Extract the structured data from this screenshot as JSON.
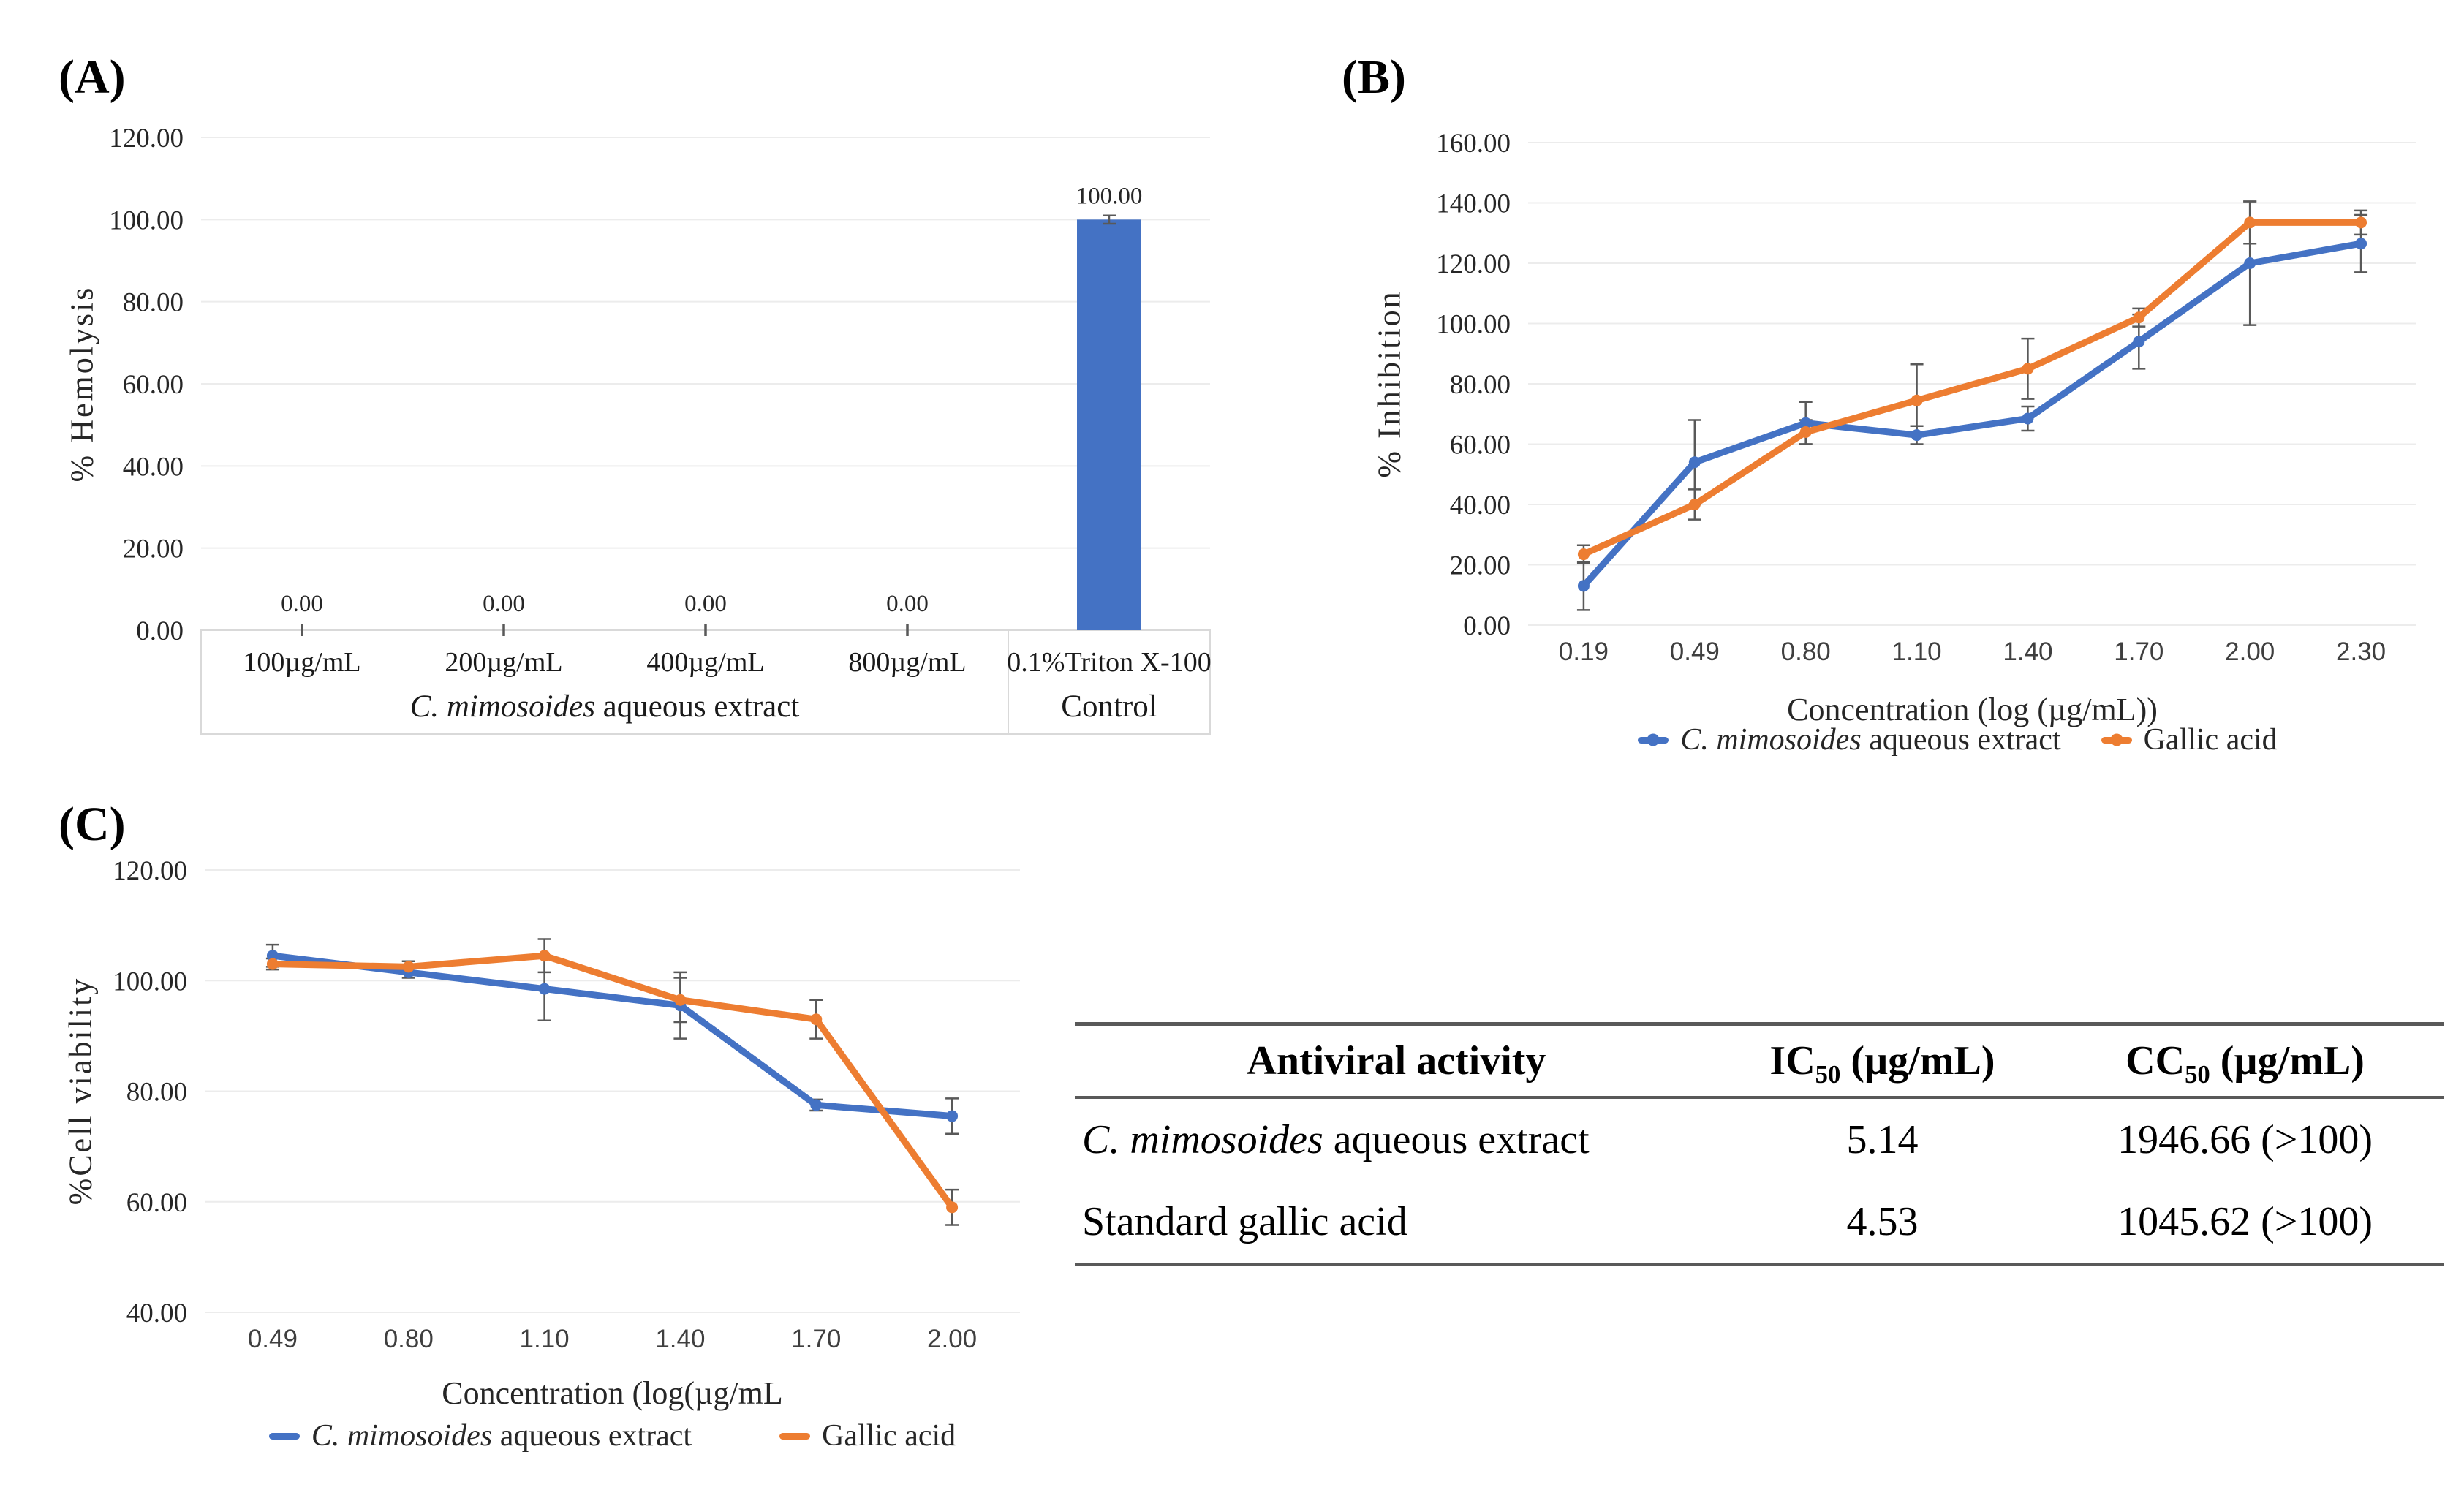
{
  "colors": {
    "series_blue": "#4472C4",
    "series_orange": "#ED7D31",
    "gridline": "#ececec",
    "error_bar": "#595959",
    "band_border": "#d9d9d9"
  },
  "chart_data": [
    {
      "id": "A",
      "type": "bar",
      "panel_label": "(A)",
      "ylabel": "% Hemolysis",
      "xlabel": "",
      "ylim": [
        0,
        120
      ],
      "ytick_labels": [
        "0.00",
        "20.00",
        "40.00",
        "60.00",
        "80.00",
        "100.00",
        "120.00"
      ],
      "categories": [
        "100µg/mL",
        "200µg/mL",
        "400µg/mL",
        "800µg/mL",
        "0.1%Triton X-100"
      ],
      "group_labels": [
        {
          "italic": "C. mimosoides",
          "text": " aqueous extract",
          "span": 4
        },
        {
          "italic": "",
          "text": "Control",
          "span": 1
        }
      ],
      "values": [
        0,
        0,
        0,
        0,
        100
      ],
      "data_labels": [
        "0.00",
        "0.00",
        "0.00",
        "0.00",
        "100.00"
      ],
      "errors": [
        0,
        0,
        0,
        0,
        1
      ],
      "bar_color": "#4472C4",
      "grid": true,
      "legend_position": "none"
    },
    {
      "id": "B",
      "type": "line",
      "panel_label": "(B)",
      "ylabel": "% Inhibition",
      "xlabel": "Concentration (log (µg/mL))",
      "ylim": [
        0,
        160
      ],
      "ytick_labels": [
        "0.00",
        "20.00",
        "40.00",
        "60.00",
        "80.00",
        "100.00",
        "120.00",
        "140.00",
        "160.00"
      ],
      "x_categories": [
        "0.19",
        "0.49",
        "0.80",
        "1.10",
        "1.40",
        "1.70",
        "2.00",
        "2.30"
      ],
      "series": [
        {
          "legend_italic": "C. mimosoides",
          "legend_text": " aqueous extract",
          "color": "#4472C4",
          "values": [
            13,
            54,
            67,
            63,
            68.5,
            94,
            120,
            126.5
          ],
          "errors": [
            8,
            14,
            7,
            3,
            4,
            9,
            20.5,
            9.5
          ]
        },
        {
          "legend_italic": "",
          "legend_text": "Gallic acid",
          "color": "#ED7D31",
          "values": [
            23.5,
            40,
            64,
            74.5,
            85,
            102,
            133.5,
            133.5
          ],
          "errors": [
            3,
            5,
            4,
            12,
            10,
            3,
            7,
            4
          ]
        }
      ],
      "grid": true,
      "legend_position": "bottom"
    },
    {
      "id": "C",
      "type": "line",
      "panel_label": "(C)",
      "ylabel": "%Cell viability",
      "xlabel": "Concentration (log(µg/mL",
      "ylim": [
        40,
        120
      ],
      "ytick_labels": [
        "40.00",
        "60.00",
        "80.00",
        "100.00",
        "120.00"
      ],
      "x_categories": [
        "0.49",
        "0.80",
        "1.10",
        "1.40",
        "1.70",
        "2.00"
      ],
      "series": [
        {
          "legend_italic": "C. mimosoides",
          "legend_text": " aqueous extract",
          "color": "#4472C4",
          "values": [
            104.5,
            101.5,
            98.5,
            95.5,
            77.5,
            75.5
          ],
          "errors": [
            2,
            1,
            5.7,
            6,
            1,
            3.2
          ]
        },
        {
          "legend_italic": "",
          "legend_text": "Gallic acid",
          "color": "#ED7D31",
          "values": [
            103,
            102.5,
            104.5,
            96.5,
            93,
            59
          ],
          "errors": [
            1,
            1,
            3,
            4,
            3.5,
            3.2
          ]
        }
      ],
      "grid": true,
      "legend_position": "bottom"
    }
  ],
  "table": {
    "headers": [
      {
        "text": "Antiviral activity"
      },
      {
        "base": "IC",
        "sub": "50",
        "unit": " (µg/mL)"
      },
      {
        "base": "CC",
        "sub": "50",
        "unit": " (µg/mL)"
      }
    ],
    "rows": [
      {
        "name_italic": "C. mimosoides",
        "name_rest": " aqueous extract",
        "ic50": "5.14",
        "cc50": "1946.66 (>100)"
      },
      {
        "name": "Standard gallic acid",
        "ic50": "4.53",
        "cc50": "1045.62 (>100)"
      }
    ]
  }
}
